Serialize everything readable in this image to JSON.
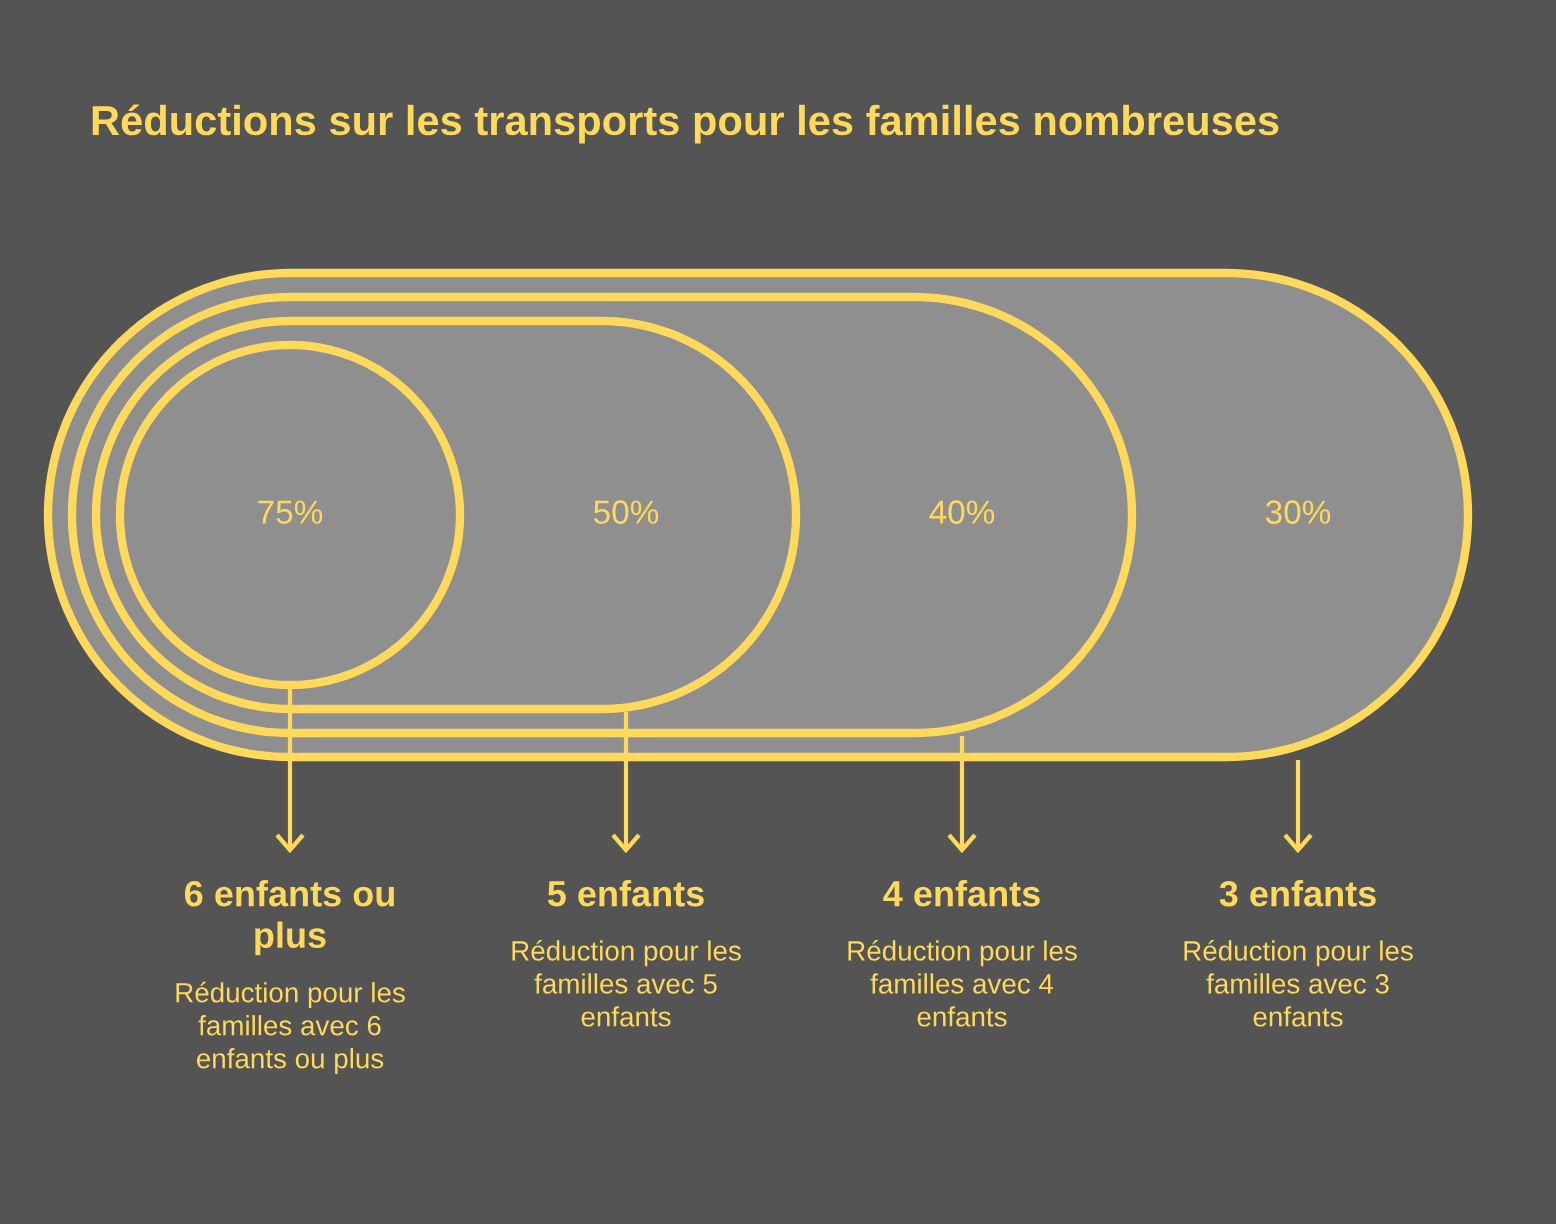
{
  "chart_data": {
    "type": "other",
    "title": "Réductions sur les transports pour les familles nombreuses",
    "categories": [
      "6 enfants ou plus",
      "5 enfants",
      "4 enfants",
      "3 enfants"
    ],
    "values": [
      75,
      50,
      40,
      30
    ],
    "value_labels": [
      "75%",
      "50%",
      "40%",
      "30%"
    ],
    "colors": [
      "#8f8f8f",
      "#8f8f8f",
      "#8f8f8f",
      "#8f8f8f"
    ],
    "annotations": [
      "Réduction pour les familles avec 6 enfants ou plus",
      "Réduction pour les familles avec 5 enfants",
      "Réduction pour les familles avec 4 enfants",
      "Réduction pour les familles avec 3 enfants"
    ]
  }
}
